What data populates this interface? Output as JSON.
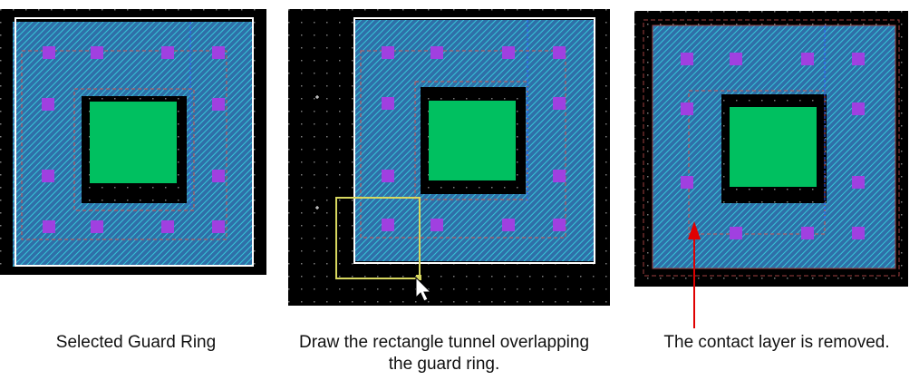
{
  "captions": {
    "panel1": "Selected Guard Ring",
    "panel2_line1": "Draw the rectangle tunnel overlapping",
    "panel2_line2": "the guard ring.",
    "panel3": "The contact layer is removed."
  },
  "colors": {
    "canvas_bg": "#000000",
    "guard_ring_fill": "#2f6fa8",
    "guard_ring_hatch": "#37c6d8",
    "contact": "#a040e0",
    "green_fill": "#00c060",
    "selection_outline": "#ffffff",
    "tunnel_outline": "#d8d860",
    "dash_line": "#d05050",
    "arrow": "#e00000",
    "grid_dot": "#7a7a7a"
  },
  "icons": {
    "cursor": "arrow-cursor-icon"
  }
}
